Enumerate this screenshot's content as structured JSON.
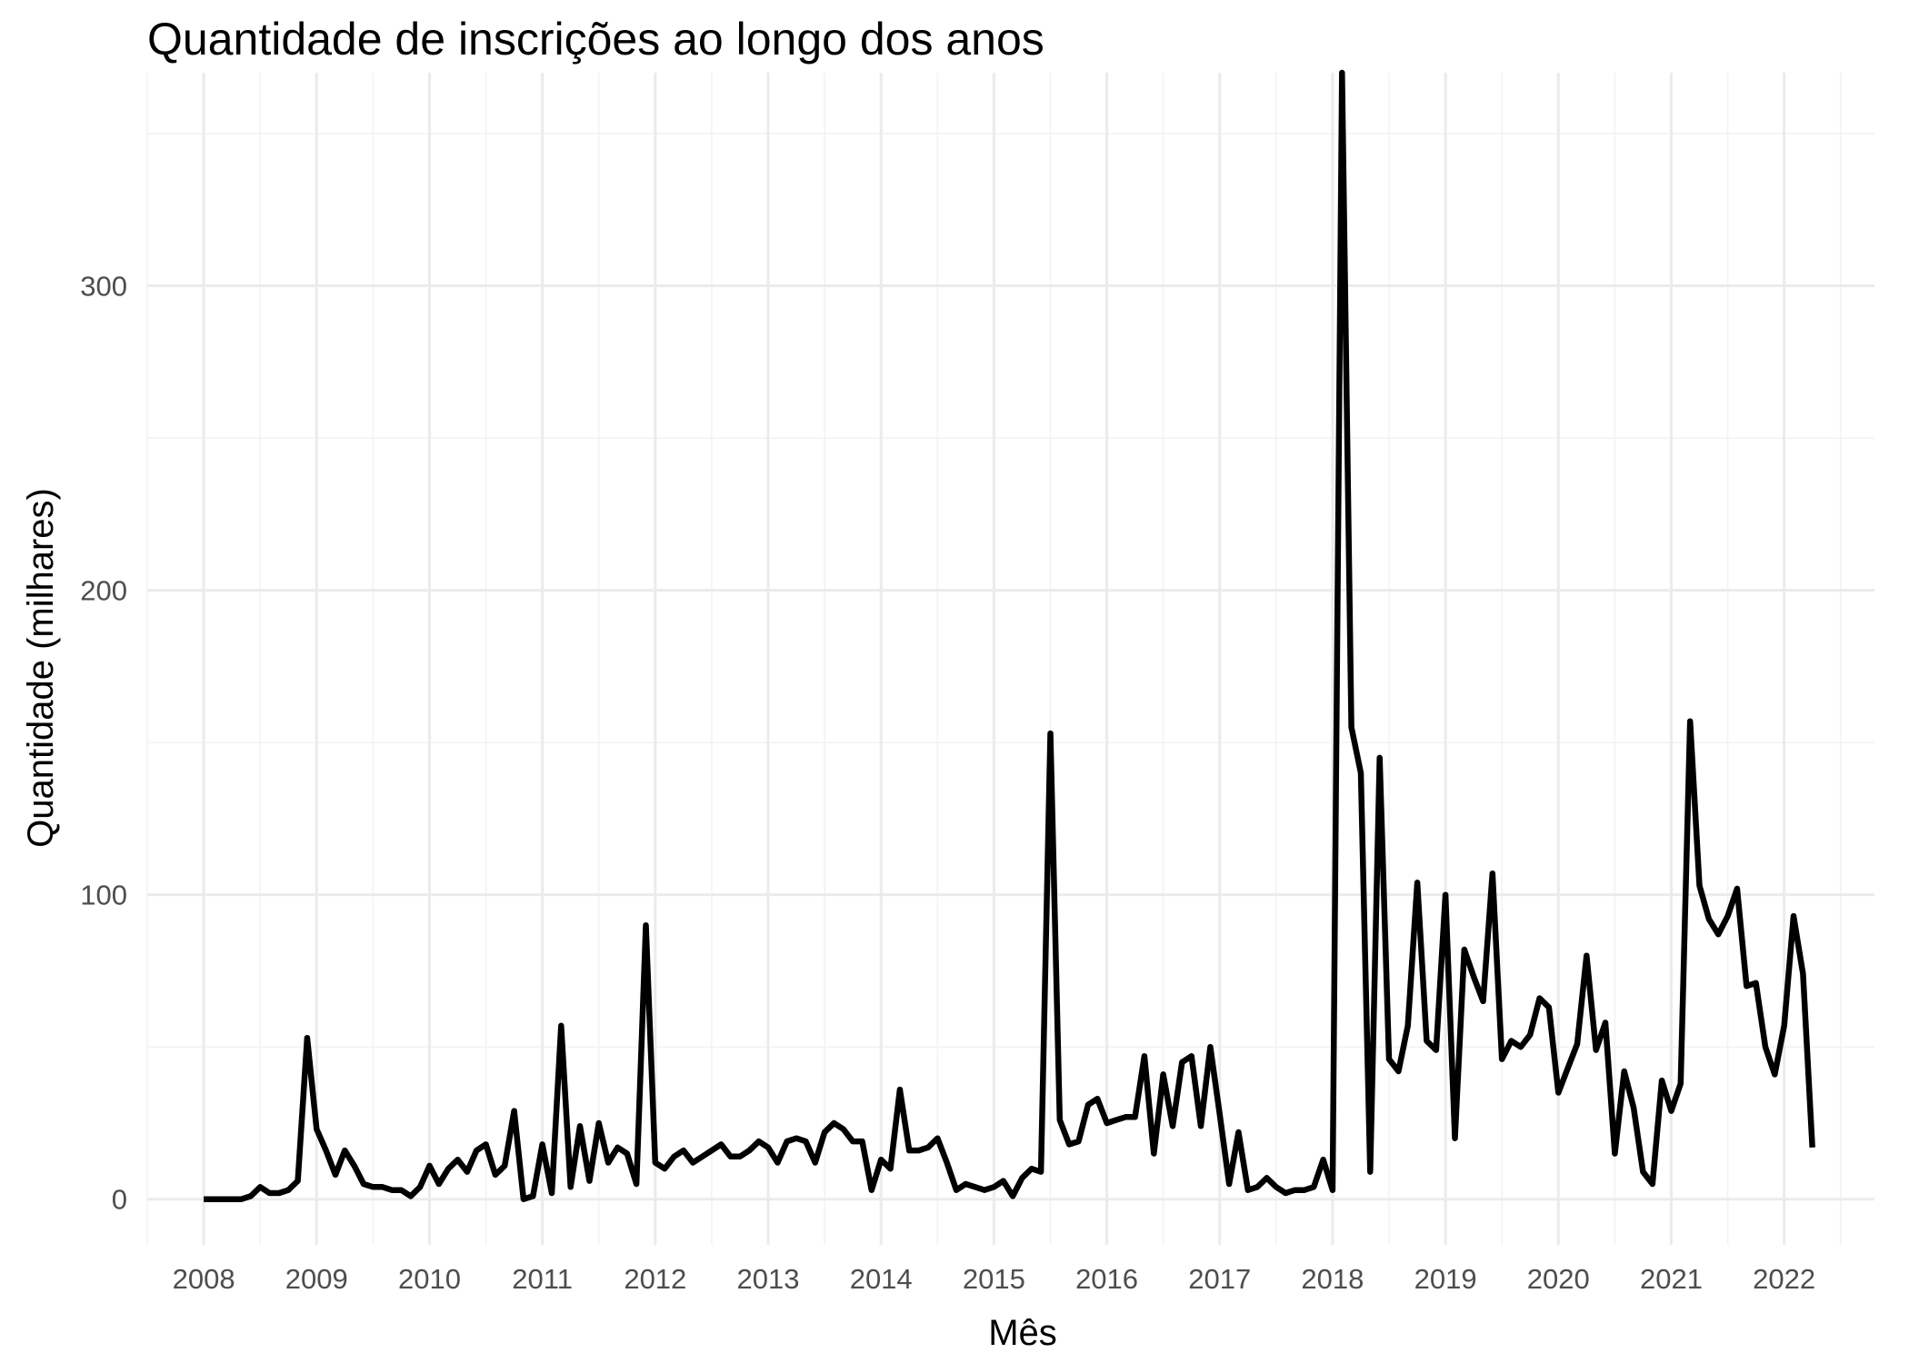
{
  "chart_data": {
    "type": "line",
    "title": "Quantidade de inscrições ao longo dos anos",
    "xlabel": "Mês",
    "ylabel": "Quantidade (milhares)",
    "x_ticks": [
      "2008",
      "2009",
      "2010",
      "2011",
      "2012",
      "2013",
      "2014",
      "2015",
      "2016",
      "2017",
      "2018",
      "2019",
      "2020",
      "2021",
      "2022"
    ],
    "y_ticks": [
      0,
      100,
      200,
      300
    ],
    "xlim": [
      2007.5,
      2022.8
    ],
    "ylim": [
      -15,
      370
    ],
    "grid": true,
    "series": [
      {
        "points": [
          [
            "2008-01",
            0
          ],
          [
            "2008-02",
            0
          ],
          [
            "2008-03",
            0
          ],
          [
            "2008-04",
            0
          ],
          [
            "2008-05",
            0
          ],
          [
            "2008-06",
            1
          ],
          [
            "2008-07",
            4
          ],
          [
            "2008-08",
            2
          ],
          [
            "2008-09",
            2
          ],
          [
            "2008-10",
            3
          ],
          [
            "2008-11",
            6
          ],
          [
            "2008-12",
            53
          ],
          [
            "2009-01",
            23
          ],
          [
            "2009-02",
            16
          ],
          [
            "2009-03",
            8
          ],
          [
            "2009-04",
            16
          ],
          [
            "2009-05",
            11
          ],
          [
            "2009-06",
            5
          ],
          [
            "2009-07",
            4
          ],
          [
            "2009-08",
            4
          ],
          [
            "2009-09",
            3
          ],
          [
            "2009-10",
            3
          ],
          [
            "2009-11",
            1
          ],
          [
            "2009-12",
            4
          ],
          [
            "2010-01",
            11
          ],
          [
            "2010-02",
            5
          ],
          [
            "2010-03",
            10
          ],
          [
            "2010-04",
            13
          ],
          [
            "2010-05",
            9
          ],
          [
            "2010-06",
            16
          ],
          [
            "2010-07",
            18
          ],
          [
            "2010-08",
            8
          ],
          [
            "2010-09",
            11
          ],
          [
            "2010-10",
            29
          ],
          [
            "2010-11",
            0
          ],
          [
            "2010-12",
            1
          ],
          [
            "2011-01",
            18
          ],
          [
            "2011-02",
            2
          ],
          [
            "2011-03",
            57
          ],
          [
            "2011-04",
            4
          ],
          [
            "2011-05",
            24
          ],
          [
            "2011-06",
            6
          ],
          [
            "2011-07",
            25
          ],
          [
            "2011-08",
            12
          ],
          [
            "2011-09",
            17
          ],
          [
            "2011-10",
            15
          ],
          [
            "2011-11",
            5
          ],
          [
            "2011-12",
            90
          ],
          [
            "2012-01",
            12
          ],
          [
            "2012-02",
            10
          ],
          [
            "2012-03",
            14
          ],
          [
            "2012-04",
            16
          ],
          [
            "2012-05",
            12
          ],
          [
            "2012-06",
            14
          ],
          [
            "2012-07",
            16
          ],
          [
            "2012-08",
            18
          ],
          [
            "2012-09",
            14
          ],
          [
            "2012-10",
            14
          ],
          [
            "2012-11",
            16
          ],
          [
            "2012-12",
            19
          ],
          [
            "2013-01",
            17
          ],
          [
            "2013-02",
            12
          ],
          [
            "2013-03",
            19
          ],
          [
            "2013-04",
            20
          ],
          [
            "2013-05",
            19
          ],
          [
            "2013-06",
            12
          ],
          [
            "2013-07",
            22
          ],
          [
            "2013-08",
            25
          ],
          [
            "2013-09",
            23
          ],
          [
            "2013-10",
            19
          ],
          [
            "2013-11",
            19
          ],
          [
            "2013-12",
            3
          ],
          [
            "2014-01",
            13
          ],
          [
            "2014-02",
            10
          ],
          [
            "2014-03",
            36
          ],
          [
            "2014-04",
            16
          ],
          [
            "2014-05",
            16
          ],
          [
            "2014-06",
            17
          ],
          [
            "2014-07",
            20
          ],
          [
            "2014-08",
            12
          ],
          [
            "2014-09",
            3
          ],
          [
            "2014-10",
            5
          ],
          [
            "2014-11",
            4
          ],
          [
            "2014-12",
            3
          ],
          [
            "2015-01",
            4
          ],
          [
            "2015-02",
            6
          ],
          [
            "2015-03",
            1
          ],
          [
            "2015-04",
            7
          ],
          [
            "2015-05",
            10
          ],
          [
            "2015-06",
            9
          ],
          [
            "2015-07",
            153
          ],
          [
            "2015-08",
            26
          ],
          [
            "2015-09",
            18
          ],
          [
            "2015-10",
            19
          ],
          [
            "2015-11",
            31
          ],
          [
            "2015-12",
            33
          ],
          [
            "2016-01",
            25
          ],
          [
            "2016-02",
            26
          ],
          [
            "2016-03",
            27
          ],
          [
            "2016-04",
            27
          ],
          [
            "2016-05",
            47
          ],
          [
            "2016-06",
            15
          ],
          [
            "2016-07",
            41
          ],
          [
            "2016-08",
            24
          ],
          [
            "2016-09",
            45
          ],
          [
            "2016-10",
            47
          ],
          [
            "2016-11",
            24
          ],
          [
            "2016-12",
            50
          ],
          [
            "2017-01",
            28
          ],
          [
            "2017-02",
            5
          ],
          [
            "2017-03",
            22
          ],
          [
            "2017-04",
            3
          ],
          [
            "2017-05",
            4
          ],
          [
            "2017-06",
            7
          ],
          [
            "2017-07",
            4
          ],
          [
            "2017-08",
            2
          ],
          [
            "2017-09",
            3
          ],
          [
            "2017-10",
            3
          ],
          [
            "2017-11",
            4
          ],
          [
            "2017-12",
            13
          ],
          [
            "2018-01",
            3
          ],
          [
            "2018-02",
            370
          ],
          [
            "2018-03",
            155
          ],
          [
            "2018-04",
            140
          ],
          [
            "2018-05",
            9
          ],
          [
            "2018-06",
            145
          ],
          [
            "2018-07",
            46
          ],
          [
            "2018-08",
            42
          ],
          [
            "2018-09",
            57
          ],
          [
            "2018-10",
            104
          ],
          [
            "2018-11",
            52
          ],
          [
            "2018-12",
            49
          ],
          [
            "2019-01",
            100
          ],
          [
            "2019-02",
            20
          ],
          [
            "2019-03",
            82
          ],
          [
            "2019-04",
            73
          ],
          [
            "2019-05",
            65
          ],
          [
            "2019-06",
            107
          ],
          [
            "2019-07",
            46
          ],
          [
            "2019-08",
            52
          ],
          [
            "2019-09",
            50
          ],
          [
            "2019-10",
            54
          ],
          [
            "2019-11",
            66
          ],
          [
            "2019-12",
            63
          ],
          [
            "2020-01",
            35
          ],
          [
            "2020-02",
            43
          ],
          [
            "2020-03",
            51
          ],
          [
            "2020-04",
            80
          ],
          [
            "2020-05",
            49
          ],
          [
            "2020-06",
            58
          ],
          [
            "2020-07",
            15
          ],
          [
            "2020-08",
            42
          ],
          [
            "2020-09",
            30
          ],
          [
            "2020-10",
            9
          ],
          [
            "2020-11",
            5
          ],
          [
            "2020-12",
            39
          ],
          [
            "2021-01",
            29
          ],
          [
            "2021-02",
            38
          ],
          [
            "2021-03",
            157
          ],
          [
            "2021-04",
            103
          ],
          [
            "2021-05",
            92
          ],
          [
            "2021-06",
            87
          ],
          [
            "2021-07",
            93
          ],
          [
            "2021-08",
            102
          ],
          [
            "2021-09",
            70
          ],
          [
            "2021-10",
            71
          ],
          [
            "2021-11",
            50
          ],
          [
            "2021-12",
            41
          ],
          [
            "2022-01",
            57
          ],
          [
            "2022-02",
            93
          ],
          [
            "2022-03",
            74
          ],
          [
            "2022-04",
            17
          ]
        ]
      }
    ]
  }
}
